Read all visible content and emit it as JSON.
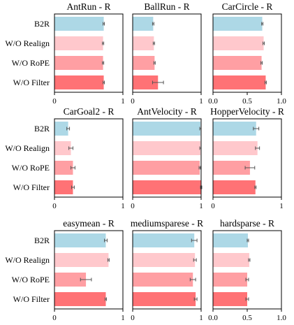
{
  "categories": [
    "B2R",
    "W/O Realign",
    "W/O RoPE",
    "W/O Filter"
  ],
  "colors": [
    "#add8e6",
    "#ffc8cc",
    "#ff9fa3",
    "#ff7275"
  ],
  "chart_data": [
    {
      "type": "bar",
      "orientation": "horizontal",
      "title": "AntRun  - R",
      "xlim": [
        0,
        1
      ],
      "xticks": [
        "0",
        "1"
      ],
      "values": [
        0.72,
        0.71,
        0.71,
        0.72
      ],
      "errors": [
        0.01,
        0.01,
        0.01,
        0.01
      ]
    },
    {
      "type": "bar",
      "orientation": "horizontal",
      "title": "BallRun  - R",
      "xlim": [
        0,
        1
      ],
      "xticks": [
        "0",
        "1"
      ],
      "values": [
        0.3,
        0.31,
        0.32,
        0.37
      ],
      "errors": [
        0.01,
        0.01,
        0.01,
        0.08
      ]
    },
    {
      "type": "bar",
      "orientation": "horizontal",
      "title": "CarCircle - R",
      "xlim": [
        0,
        1.0
      ],
      "xticks": [
        "0.0",
        "0.5",
        "1.0"
      ],
      "values": [
        0.72,
        0.74,
        0.71,
        0.77
      ],
      "errors": [
        0.01,
        0.01,
        0.01,
        0.01
      ]
    },
    {
      "type": "bar",
      "orientation": "horizontal",
      "title": "CarGoal2 - R",
      "xlim": [
        0,
        1
      ],
      "xticks": [
        "0",
        "1"
      ],
      "values": [
        0.2,
        0.24,
        0.27,
        0.27
      ],
      "errors": [
        0.02,
        0.03,
        0.03,
        0.02
      ]
    },
    {
      "type": "bar",
      "orientation": "horizontal",
      "title": "AntVelocity - R",
      "xlim": [
        0,
        1
      ],
      "xticks": [
        "0",
        "1"
      ],
      "values": [
        0.99,
        0.99,
        0.98,
        1.0
      ],
      "errors": [
        0.01,
        0.01,
        0.01,
        0.01
      ]
    },
    {
      "type": "bar",
      "orientation": "horizontal",
      "title": "HopperVelocity - R",
      "xlim": [
        0,
        1
      ],
      "xticks": [
        "0",
        "1"
      ],
      "values": [
        0.63,
        0.65,
        0.54,
        0.62
      ],
      "errors": [
        0.04,
        0.03,
        0.07,
        0.01
      ]
    },
    {
      "type": "bar",
      "orientation": "horizontal",
      "title": "easymean - R",
      "xlim": [
        0,
        1
      ],
      "xticks": [
        "0",
        "1"
      ],
      "values": [
        0.75,
        0.79,
        0.46,
        0.75
      ],
      "errors": [
        0.02,
        0.01,
        0.08,
        0.01
      ]
    },
    {
      "type": "bar",
      "orientation": "horizontal",
      "title": "mediumsparese - R",
      "xlim": [
        0,
        1
      ],
      "xticks": [
        "0",
        "1"
      ],
      "values": [
        0.9,
        0.91,
        0.88,
        0.92
      ],
      "errors": [
        0.04,
        0.02,
        0.04,
        0.02
      ]
    },
    {
      "type": "bar",
      "orientation": "horizontal",
      "title": "hardsparse - R",
      "xlim": [
        0,
        1.0
      ],
      "xticks": [
        "0.0",
        "0.5",
        "1.0"
      ],
      "values": [
        0.51,
        0.53,
        0.5,
        0.5
      ],
      "errors": [
        0.01,
        0.01,
        0.02,
        0.02
      ]
    }
  ]
}
